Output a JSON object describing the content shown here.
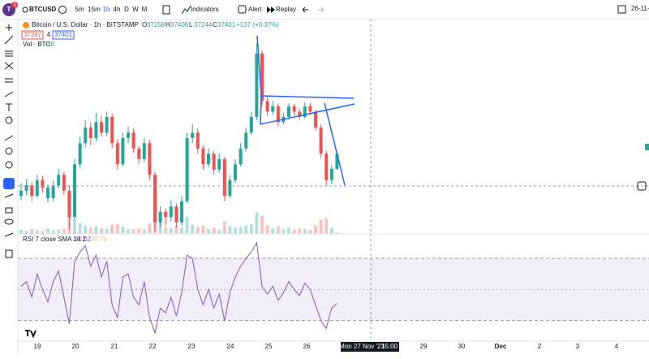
{
  "toolbar": {
    "symbol": "BTCUSD",
    "badge": "3",
    "intervals": [
      "5m",
      "15m",
      "1h",
      "4h",
      "D",
      "W",
      "M"
    ],
    "indicators": "Indicators",
    "alert": "Alert",
    "replay": "Replay",
    "date": "26-11-"
  },
  "legend": {
    "title": "Bitcoin / U.S. Dollar · 1h · BITSTAMP",
    "ohlc_labels": [
      "O",
      "H",
      "L",
      "C"
    ],
    "change": "+137 (+0.37%)",
    "bid": 37397,
    "spread": 4,
    "volume_label": "Vol · BTC"
  },
  "chart": {
    "type": "candlestick",
    "ylim": [
      36640,
      38550
    ],
    "up_color": "#26a69a",
    "down_color": "#ef5350",
    "candles": [
      [
        37000,
        37120,
        36960,
        37050
      ],
      [
        37050,
        37160,
        37010,
        37100
      ],
      [
        37100,
        37130,
        36950,
        37000
      ],
      [
        37000,
        37200,
        36980,
        37150
      ],
      [
        37150,
        37190,
        37030,
        37080
      ],
      [
        36980,
        37110,
        36940,
        37080
      ],
      [
        36980,
        37150,
        36950,
        37100
      ],
      [
        37100,
        37260,
        37070,
        37200
      ],
      [
        37200,
        37230,
        37010,
        37050
      ],
      [
        37050,
        37100,
        36680,
        36800
      ],
      [
        36800,
        37350,
        36780,
        37300
      ],
      [
        37300,
        37560,
        37260,
        37500
      ],
      [
        37500,
        37720,
        37460,
        37650
      ],
      [
        37650,
        37700,
        37480,
        37550
      ],
      [
        37550,
        37790,
        37520,
        37700
      ],
      [
        37700,
        37760,
        37560,
        37600
      ],
      [
        37600,
        37800,
        37570,
        37750
      ],
      [
        37750,
        37780,
        37450,
        37500
      ],
      [
        37500,
        37540,
        37250,
        37300
      ],
      [
        37300,
        37600,
        37280,
        37550
      ],
      [
        37550,
        37660,
        37500,
        37600
      ],
      [
        37600,
        37640,
        37410,
        37450
      ],
      [
        37450,
        37480,
        37300,
        37350
      ],
      [
        37350,
        37550,
        37320,
        37500
      ],
      [
        37500,
        37530,
        37150,
        37200
      ],
      [
        37200,
        37230,
        36660,
        36750
      ],
      [
        36750,
        36900,
        36700,
        36850
      ],
      [
        36850,
        36880,
        36720,
        36800
      ],
      [
        36800,
        36960,
        36760,
        36900
      ],
      [
        36900,
        36930,
        36700,
        36750
      ],
      [
        36750,
        37000,
        36720,
        36950
      ],
      [
        36950,
        37600,
        36930,
        37550
      ],
      [
        37550,
        37680,
        37500,
        37600
      ],
      [
        37600,
        37640,
        37400,
        37450
      ],
      [
        37450,
        37480,
        37250,
        37300
      ],
      [
        37300,
        37450,
        37270,
        37400
      ],
      [
        37400,
        37430,
        37200,
        37250
      ],
      [
        37250,
        37400,
        37220,
        37350
      ],
      [
        37350,
        37370,
        36950,
        37000
      ],
      [
        37000,
        37200,
        36980,
        37150
      ],
      [
        37150,
        37350,
        37120,
        37300
      ],
      [
        37300,
        37500,
        37280,
        37450
      ],
      [
        37450,
        37650,
        37420,
        37600
      ],
      [
        37600,
        37800,
        37580,
        37750
      ],
      [
        37750,
        38450,
        37720,
        38350
      ],
      [
        38350,
        38380,
        37850,
        37900
      ],
      [
        37900,
        37950,
        37760,
        37800
      ],
      [
        37800,
        37900,
        37770,
        37850
      ],
      [
        37850,
        37880,
        37660,
        37700
      ],
      [
        37700,
        37790,
        37680,
        37750
      ],
      [
        37750,
        37880,
        37720,
        37850
      ],
      [
        37850,
        37870,
        37760,
        37800
      ],
      [
        37800,
        37830,
        37720,
        37750
      ],
      [
        37750,
        37890,
        37730,
        37850
      ],
      [
        37850,
        37880,
        37770,
        37800
      ],
      [
        37800,
        37820,
        37620,
        37650
      ],
      [
        37650,
        37680,
        37360,
        37400
      ],
      [
        37400,
        37430,
        37100,
        37150
      ],
      [
        37150,
        37290,
        37110,
        37258
      ],
      [
        37258,
        37406,
        37244,
        37401
      ]
    ],
    "volume": [
      60,
      45,
      70,
      55,
      40,
      80,
      50,
      60,
      75,
      260,
      210,
      150,
      120,
      90,
      110,
      80,
      70,
      130,
      140,
      100,
      60,
      70,
      80,
      60,
      150,
      280,
      160,
      100,
      80,
      120,
      90,
      240,
      130,
      100,
      120,
      70,
      90,
      60,
      180,
      110,
      90,
      100,
      120,
      140,
      300,
      260,
      120,
      80,
      110,
      70,
      90,
      60,
      80,
      70,
      60,
      120,
      200,
      220,
      90,
      18
    ],
    "rsi": {
      "label": "RSI 7 close SMA 14 2",
      "sma_value": "39.70",
      "ylim": [
        21,
        82
      ],
      "bands": [
        30,
        70
      ],
      "mid": 50,
      "color": "#7e57c2",
      "values": [
        52,
        55,
        45,
        60,
        50,
        42,
        55,
        62,
        45,
        28,
        68,
        74,
        78,
        65,
        72,
        58,
        68,
        40,
        32,
        58,
        60,
        45,
        40,
        55,
        32,
        22,
        38,
        35,
        45,
        33,
        48,
        72,
        70,
        50,
        40,
        50,
        38,
        47,
        30,
        48,
        58,
        65,
        70,
        74,
        80,
        52,
        47,
        52,
        43,
        48,
        55,
        50,
        46,
        54,
        50,
        40,
        30,
        25,
        38,
        41.02
      ]
    }
  },
  "time_axis": [
    "19",
    "20",
    "21",
    "22",
    "23",
    "24",
    "25",
    "26",
    "Mon 27 Nov '23",
    "15:00",
    "29",
    "30",
    "Dec",
    "2",
    "3",
    "4"
  ]
}
